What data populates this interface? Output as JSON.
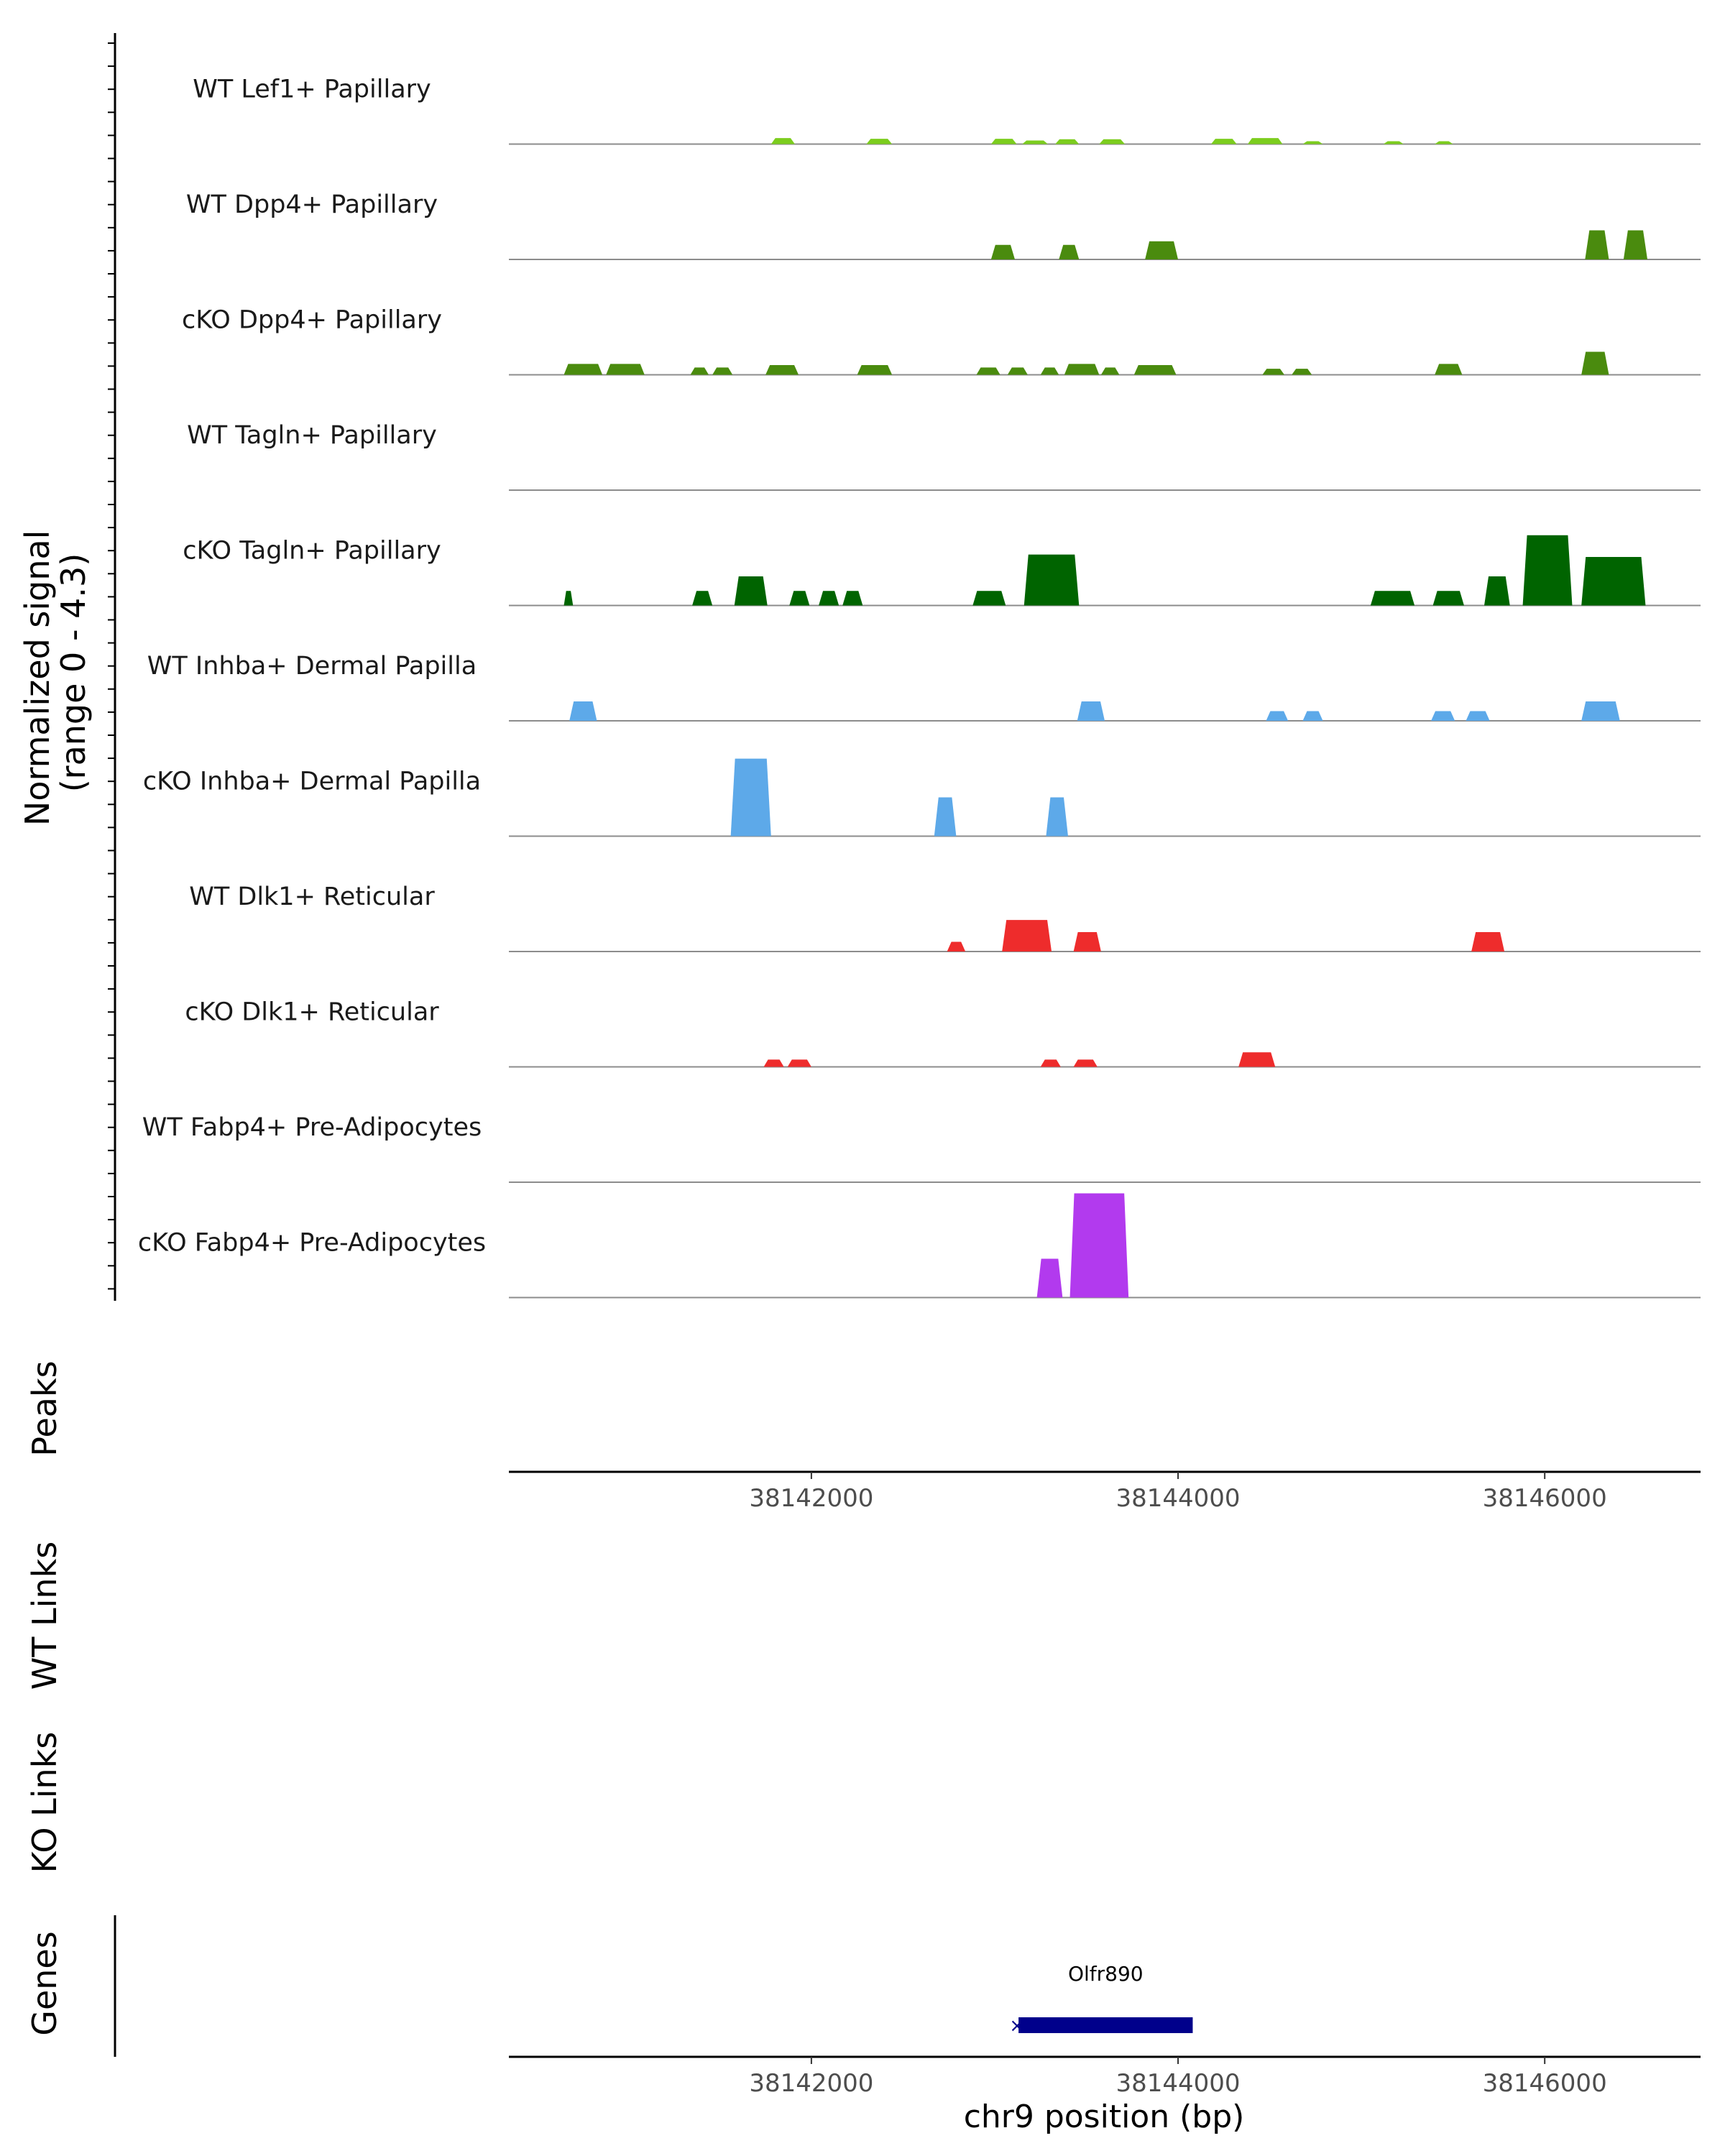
{
  "chart_data": {
    "type": "area",
    "title": "",
    "xlabel": "chr9 position (bp)",
    "ylabel_line1": "Normalized signal",
    "ylabel_line2": "(range 0 - 4.3)",
    "y_range": [
      0,
      4.3
    ],
    "xlim": [
      38140350,
      38146850
    ],
    "x_ticks": [
      38142000,
      38144000,
      38146000
    ],
    "x_tick_labels": [
      "38142000",
      "38144000",
      "38146000"
    ],
    "tracks": [
      {
        "name": "WT Lef1+ Papillary",
        "color": "#7CCD1E",
        "regions": [
          [
            38141780,
            38141910,
            0.25
          ],
          [
            38142300,
            38142440,
            0.22
          ],
          [
            38142980,
            38143120,
            0.22
          ],
          [
            38143150,
            38143290,
            0.15
          ],
          [
            38143330,
            38143460,
            0.2
          ],
          [
            38143570,
            38143710,
            0.2
          ],
          [
            38144180,
            38144320,
            0.22
          ],
          [
            38144380,
            38144570,
            0.25
          ],
          [
            38144680,
            38144790,
            0.12
          ],
          [
            38145120,
            38145230,
            0.12
          ],
          [
            38145400,
            38145500,
            0.12
          ]
        ]
      },
      {
        "name": "WT Dpp4+ Papillary",
        "color": "#4A8B0E",
        "regions": [
          [
            38142980,
            38143110,
            0.6
          ],
          [
            38143350,
            38143460,
            0.6
          ],
          [
            38143820,
            38144000,
            0.75
          ],
          [
            38146220,
            38146350,
            1.2
          ],
          [
            38146430,
            38146560,
            1.2
          ]
        ]
      },
      {
        "name": "cKO Dpp4+ Papillary",
        "color": "#4A8B0E",
        "regions": [
          [
            38140650,
            38140860,
            0.45
          ],
          [
            38140880,
            38141090,
            0.45
          ],
          [
            38141340,
            38141440,
            0.3
          ],
          [
            38141460,
            38141570,
            0.3
          ],
          [
            38141750,
            38141930,
            0.4
          ],
          [
            38142250,
            38142440,
            0.4
          ],
          [
            38142900,
            38143030,
            0.3
          ],
          [
            38143070,
            38143180,
            0.3
          ],
          [
            38143250,
            38143350,
            0.3
          ],
          [
            38143380,
            38143570,
            0.45
          ],
          [
            38143580,
            38143680,
            0.3
          ],
          [
            38143760,
            38143990,
            0.4
          ],
          [
            38144460,
            38144580,
            0.25
          ],
          [
            38144620,
            38144730,
            0.25
          ],
          [
            38145400,
            38145550,
            0.45
          ],
          [
            38146200,
            38146350,
            0.95
          ]
        ]
      },
      {
        "name": "WT Tagln+ Papillary",
        "color": "#006400",
        "regions": []
      },
      {
        "name": "cKO Tagln+ Papillary",
        "color": "#006400",
        "regions": [
          [
            38140650,
            38140700,
            0.6
          ],
          [
            38141350,
            38141460,
            0.6
          ],
          [
            38141580,
            38141760,
            1.2
          ],
          [
            38141880,
            38141990,
            0.6
          ],
          [
            38142040,
            38142150,
            0.6
          ],
          [
            38142170,
            38142280,
            0.6
          ],
          [
            38142880,
            38143060,
            0.6
          ],
          [
            38143160,
            38143460,
            2.1
          ],
          [
            38145050,
            38145290,
            0.6
          ],
          [
            38145390,
            38145560,
            0.6
          ],
          [
            38145670,
            38145810,
            1.2
          ],
          [
            38145880,
            38146150,
            2.9
          ],
          [
            38146200,
            38146550,
            2.0
          ]
        ]
      },
      {
        "name": "WT Inhba+ Dermal Papilla",
        "color": "#5DA9E9",
        "regions": [
          [
            38140680,
            38140830,
            0.8
          ],
          [
            38143450,
            38143600,
            0.8
          ],
          [
            38144480,
            38144600,
            0.4
          ],
          [
            38144680,
            38144790,
            0.4
          ],
          [
            38145380,
            38145510,
            0.4
          ],
          [
            38145570,
            38145700,
            0.4
          ],
          [
            38146200,
            38146410,
            0.8
          ]
        ]
      },
      {
        "name": "cKO Inhba+ Dermal Papilla",
        "color": "#5DA9E9",
        "regions": [
          [
            38141560,
            38141780,
            3.2
          ],
          [
            38142670,
            38142790,
            1.6
          ],
          [
            38143280,
            38143400,
            1.6
          ]
        ]
      },
      {
        "name": "WT Dlk1+ Reticular",
        "color": "#EE2C2C",
        "regions": [
          [
            38142740,
            38142840,
            0.4
          ],
          [
            38143040,
            38143310,
            1.3
          ],
          [
            38143430,
            38143580,
            0.8
          ],
          [
            38145600,
            38145780,
            0.8
          ]
        ]
      },
      {
        "name": "cKO Dlk1+ Reticular",
        "color": "#EE2C2C",
        "regions": [
          [
            38141740,
            38141850,
            0.3
          ],
          [
            38141870,
            38142000,
            0.3
          ],
          [
            38143250,
            38143360,
            0.3
          ],
          [
            38143430,
            38143560,
            0.3
          ],
          [
            38144330,
            38144530,
            0.6
          ]
        ]
      },
      {
        "name": "WT Fabp4+ Pre-Adipocytes",
        "color": "#B23AEE",
        "regions": []
      },
      {
        "name": "cKO Fabp4+ Pre-Adipocytes",
        "color": "#B23AEE",
        "regions": [
          [
            38143230,
            38143370,
            1.6
          ],
          [
            38143410,
            38143730,
            4.3
          ]
        ]
      }
    ],
    "annotation_tracks": [
      "Peaks",
      "WT Links",
      "KO Links",
      "Genes"
    ],
    "genes": [
      {
        "name": "Olfr890",
        "start": 38143130,
        "end": 38144080,
        "strand": "-",
        "color": "#00008B"
      }
    ]
  }
}
